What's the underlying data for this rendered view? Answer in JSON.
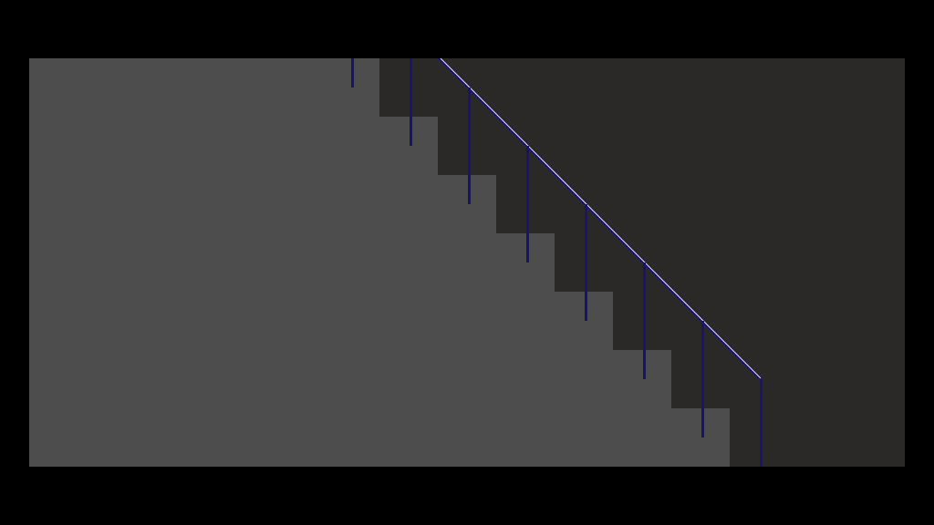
{
  "scene": {
    "type": "staircase-with-railing",
    "colors": {
      "screen_background": "#000000",
      "wall": "#2a2928",
      "stairs": "#4d4d4d",
      "railing": "#1a1470",
      "handrail_highlight": "#e8e8f8"
    },
    "steps_visible": 9,
    "balusters_visible": 8
  }
}
